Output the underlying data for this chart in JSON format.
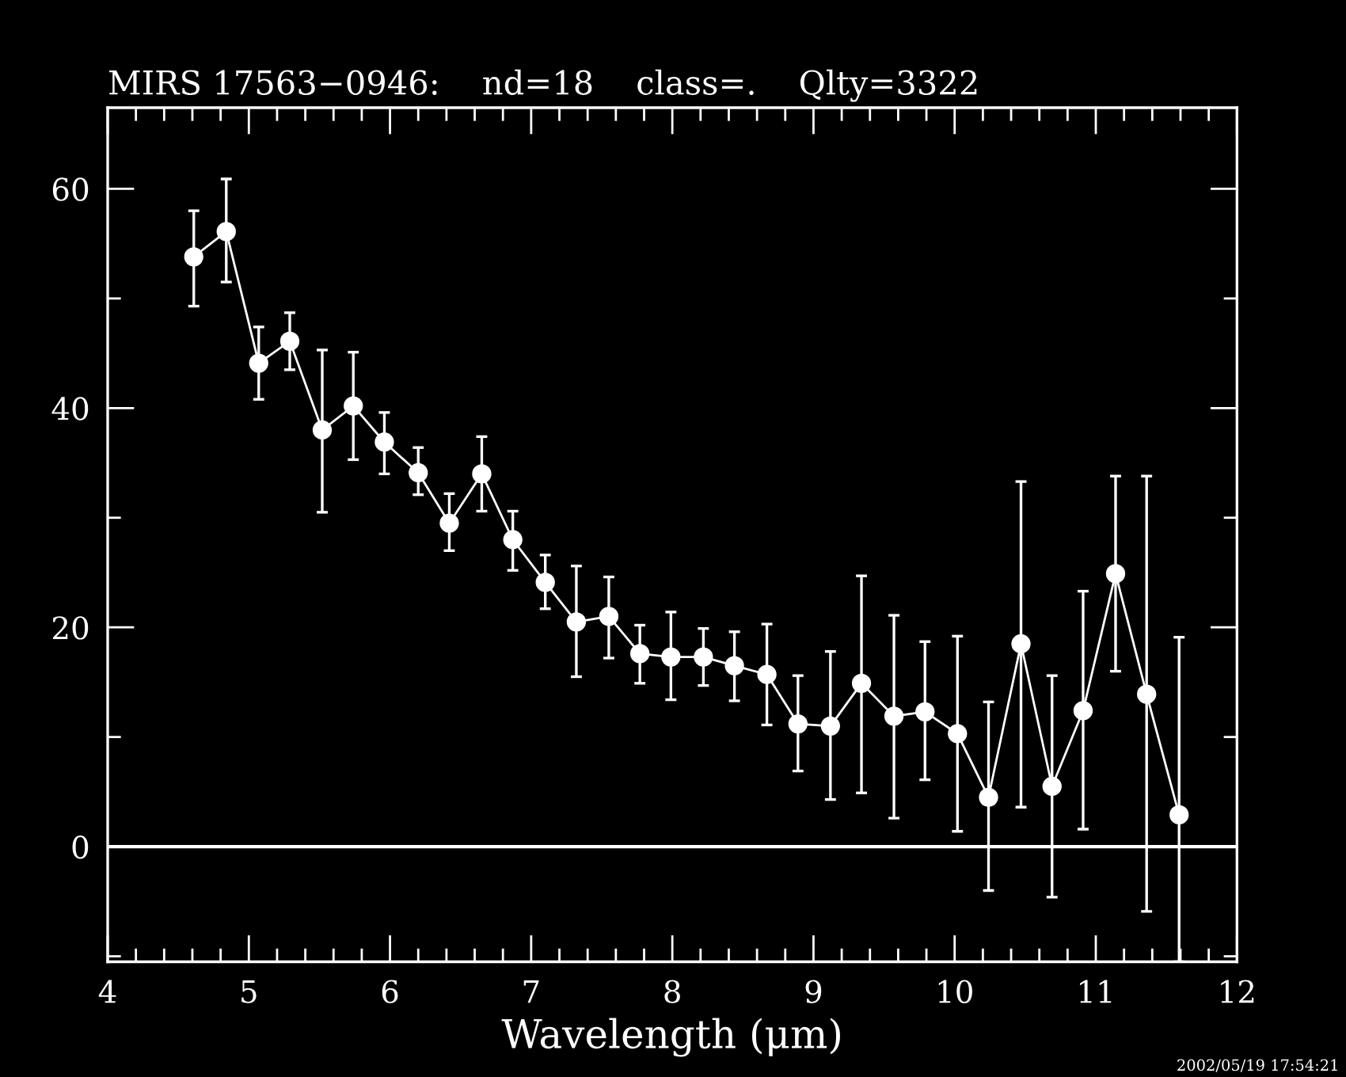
{
  "chart_data": {
    "type": "line",
    "title": "MIRS 17563−0946:    nd=18    class=.    Qlty=3322",
    "xlabel": "Wavelength (μm)",
    "annotations": [
      "2002/05/19 17:54:21"
    ],
    "x": [
      4.61,
      4.84,
      5.07,
      5.29,
      5.52,
      5.74,
      5.96,
      6.2,
      6.42,
      6.65,
      6.87,
      7.1,
      7.32,
      7.55,
      7.77,
      7.99,
      8.22,
      8.44,
      8.67,
      8.89,
      9.12,
      9.34,
      9.57,
      9.79,
      10.02,
      10.24,
      10.47,
      10.69,
      10.91,
      11.14,
      11.36,
      11.59
    ],
    "series": [
      {
        "color": "#ffffff",
        "values": [
          53.8,
          56.1,
          44.1,
          46.1,
          38.0,
          40.2,
          36.9,
          34.1,
          29.5,
          34.0,
          28.0,
          24.1,
          20.5,
          21.0,
          17.6,
          17.3,
          17.3,
          16.5,
          15.7,
          11.2,
          11.0,
          14.9,
          11.9,
          12.3,
          10.3,
          4.5,
          18.5,
          5.5,
          12.4,
          24.9,
          13.9,
          2.9
        ],
        "errors": [
          [
            49.3,
            58.0
          ],
          [
            51.5,
            60.9
          ],
          [
            40.8,
            47.4
          ],
          [
            43.5,
            48.7
          ],
          [
            30.5,
            45.3
          ],
          [
            35.3,
            45.1
          ],
          [
            34.0,
            39.6
          ],
          [
            32.1,
            36.4
          ],
          [
            27.0,
            32.2
          ],
          [
            30.6,
            37.4
          ],
          [
            25.2,
            30.6
          ],
          [
            21.7,
            26.6
          ],
          [
            15.5,
            25.6
          ],
          [
            17.2,
            24.6
          ],
          [
            14.9,
            20.2
          ],
          [
            13.4,
            21.4
          ],
          [
            14.7,
            19.9
          ],
          [
            13.3,
            19.6
          ],
          [
            11.1,
            20.3
          ],
          [
            6.9,
            15.6
          ],
          [
            4.3,
            17.8
          ],
          [
            4.9,
            24.7
          ],
          [
            2.6,
            21.1
          ],
          [
            6.1,
            18.7
          ],
          [
            1.4,
            19.2
          ],
          [
            -4.0,
            13.2
          ],
          [
            3.6,
            33.3
          ],
          [
            -4.6,
            15.6
          ],
          [
            1.6,
            23.3
          ],
          [
            16.0,
            33.8
          ],
          [
            -5.9,
            33.8
          ],
          [
            -10.5,
            19.1
          ]
        ]
      }
    ],
    "xlim": [
      4,
      12
    ],
    "xticks": [
      4,
      {
        "value": 4.2,
        "label": null
      },
      {
        "value": 4.4,
        "label": null
      },
      {
        "value": 4.6,
        "label": null
      },
      {
        "value": 4.8,
        "label": null
      },
      5,
      {
        "value": 5.2,
        "label": null
      },
      {
        "value": 5.4,
        "label": null
      },
      {
        "value": 5.6,
        "label": null
      },
      {
        "value": 5.8,
        "label": null
      },
      6,
      {
        "value": 6.2,
        "label": null
      },
      {
        "value": 6.4,
        "label": null
      },
      {
        "value": 6.6,
        "label": null
      },
      {
        "value": 6.8,
        "label": null
      },
      7,
      {
        "value": 7.2,
        "label": null
      },
      {
        "value": 7.4,
        "label": null
      },
      {
        "value": 7.6,
        "label": null
      },
      {
        "value": 7.8,
        "label": null
      },
      8,
      {
        "value": 8.2,
        "label": null
      },
      {
        "value": 8.4,
        "label": null
      },
      {
        "value": 8.6,
        "label": null
      },
      {
        "value": 8.8,
        "label": null
      },
      9,
      {
        "value": 9.2,
        "label": null
      },
      {
        "value": 9.4,
        "label": null
      },
      {
        "value": 9.6,
        "label": null
      },
      {
        "value": 9.8,
        "label": null
      },
      10,
      {
        "value": 10.2,
        "label": null
      },
      {
        "value": 10.4,
        "label": null
      },
      {
        "value": 10.6,
        "label": null
      },
      {
        "value": 10.8,
        "label": null
      },
      11,
      {
        "value": 11.2,
        "label": null
      },
      {
        "value": 11.4,
        "label": null
      },
      {
        "value": 11.6,
        "label": null
      },
      {
        "value": 11.8,
        "label": null
      },
      12
    ],
    "ylim": [
      -10.5,
      67.4
    ],
    "yticks": [
      {
        "value": -10,
        "label": null
      },
      0,
      {
        "value": 10,
        "label": null
      },
      20,
      {
        "value": 30,
        "label": null
      },
      40,
      {
        "value": 50,
        "label": null
      },
      60
    ],
    "ref_lines": [
      {
        "axis": "y",
        "value": 0,
        "color": "#ffffff",
        "line_style": "solid"
      }
    ],
    "marker": "circle",
    "line_style": "solid",
    "grid": false,
    "legend": false
  }
}
